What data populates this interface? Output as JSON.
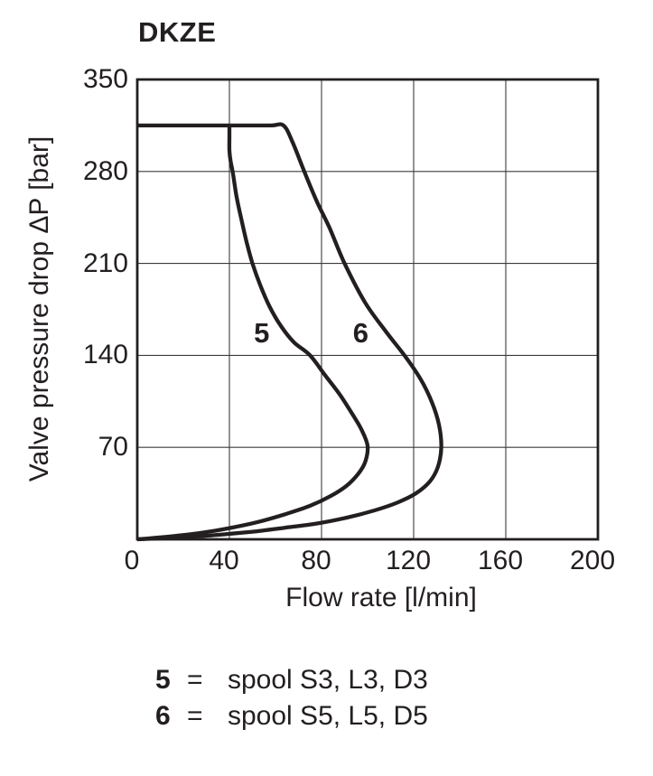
{
  "chart_data": {
    "type": "line",
    "title": "DKZE",
    "xlabel": "Flow rate [l/min]",
    "ylabel": "Valve pressure drop ΔP [bar]",
    "xlim": [
      0,
      200
    ],
    "ylim": [
      0,
      350
    ],
    "x_ticks": [
      0,
      40,
      80,
      120,
      160,
      200
    ],
    "y_ticks": [
      350,
      280,
      210,
      140,
      70
    ],
    "grid": true,
    "legend_position": "below",
    "series": [
      {
        "name": "5",
        "label": {
          "x": 54,
          "y": 157
        },
        "description": "spool S3, L3, D3",
        "points": [
          [
            40,
            315
          ],
          [
            40,
            306
          ],
          [
            40,
            296
          ],
          [
            40.5,
            288
          ],
          [
            41.5,
            279
          ],
          [
            43,
            262
          ],
          [
            45,
            245
          ],
          [
            47.5,
            226
          ],
          [
            50,
            210
          ],
          [
            53.5,
            193
          ],
          [
            57.5,
            177
          ],
          [
            62.5,
            162
          ],
          [
            68,
            150
          ],
          [
            75,
            140
          ],
          [
            81.5,
            125
          ],
          [
            88,
            110
          ],
          [
            93.5,
            95
          ],
          [
            97.5,
            83
          ],
          [
            100,
            71
          ],
          [
            99,
            59
          ],
          [
            96,
            50
          ],
          [
            91,
            41
          ],
          [
            84,
            33
          ],
          [
            75,
            25.5
          ],
          [
            64,
            19
          ],
          [
            52,
            13
          ],
          [
            40,
            8.5
          ],
          [
            28,
            5
          ],
          [
            16,
            2.5
          ],
          [
            6,
            0.8
          ],
          [
            0,
            0
          ]
        ]
      },
      {
        "name": "6",
        "label": {
          "x": 97,
          "y": 157
        },
        "description": "spool S5, L5, D5",
        "points": [
          [
            0,
            315
          ],
          [
            25,
            315
          ],
          [
            45,
            315
          ],
          [
            58,
            315
          ],
          [
            63.5,
            315
          ],
          [
            67.5,
            302
          ],
          [
            72.5,
            280
          ],
          [
            78,
            257
          ],
          [
            83.5,
            237
          ],
          [
            90,
            210
          ],
          [
            99,
            180
          ],
          [
            108,
            158
          ],
          [
            116,
            140
          ],
          [
            123,
            122
          ],
          [
            128,
            104
          ],
          [
            131,
            87
          ],
          [
            132,
            70
          ],
          [
            130.5,
            55
          ],
          [
            127,
            44
          ],
          [
            121,
            35
          ],
          [
            113,
            28
          ],
          [
            103,
            22
          ],
          [
            91,
            16.5
          ],
          [
            78,
            12
          ],
          [
            64,
            8.8
          ],
          [
            50,
            5.8
          ],
          [
            36,
            3.5
          ],
          [
            22,
            1.8
          ],
          [
            10,
            0.7
          ],
          [
            0,
            0
          ]
        ]
      }
    ]
  },
  "legend": {
    "items": [
      {
        "num": "5",
        "eq": "=",
        "desc": "spool S3, L3, D3"
      },
      {
        "num": "6",
        "eq": "=",
        "desc": "spool S5, L5, D5"
      }
    ]
  },
  "colors": {
    "ink": "#231f20",
    "grid": "#3c3c3c",
    "background": "#ffffff"
  }
}
